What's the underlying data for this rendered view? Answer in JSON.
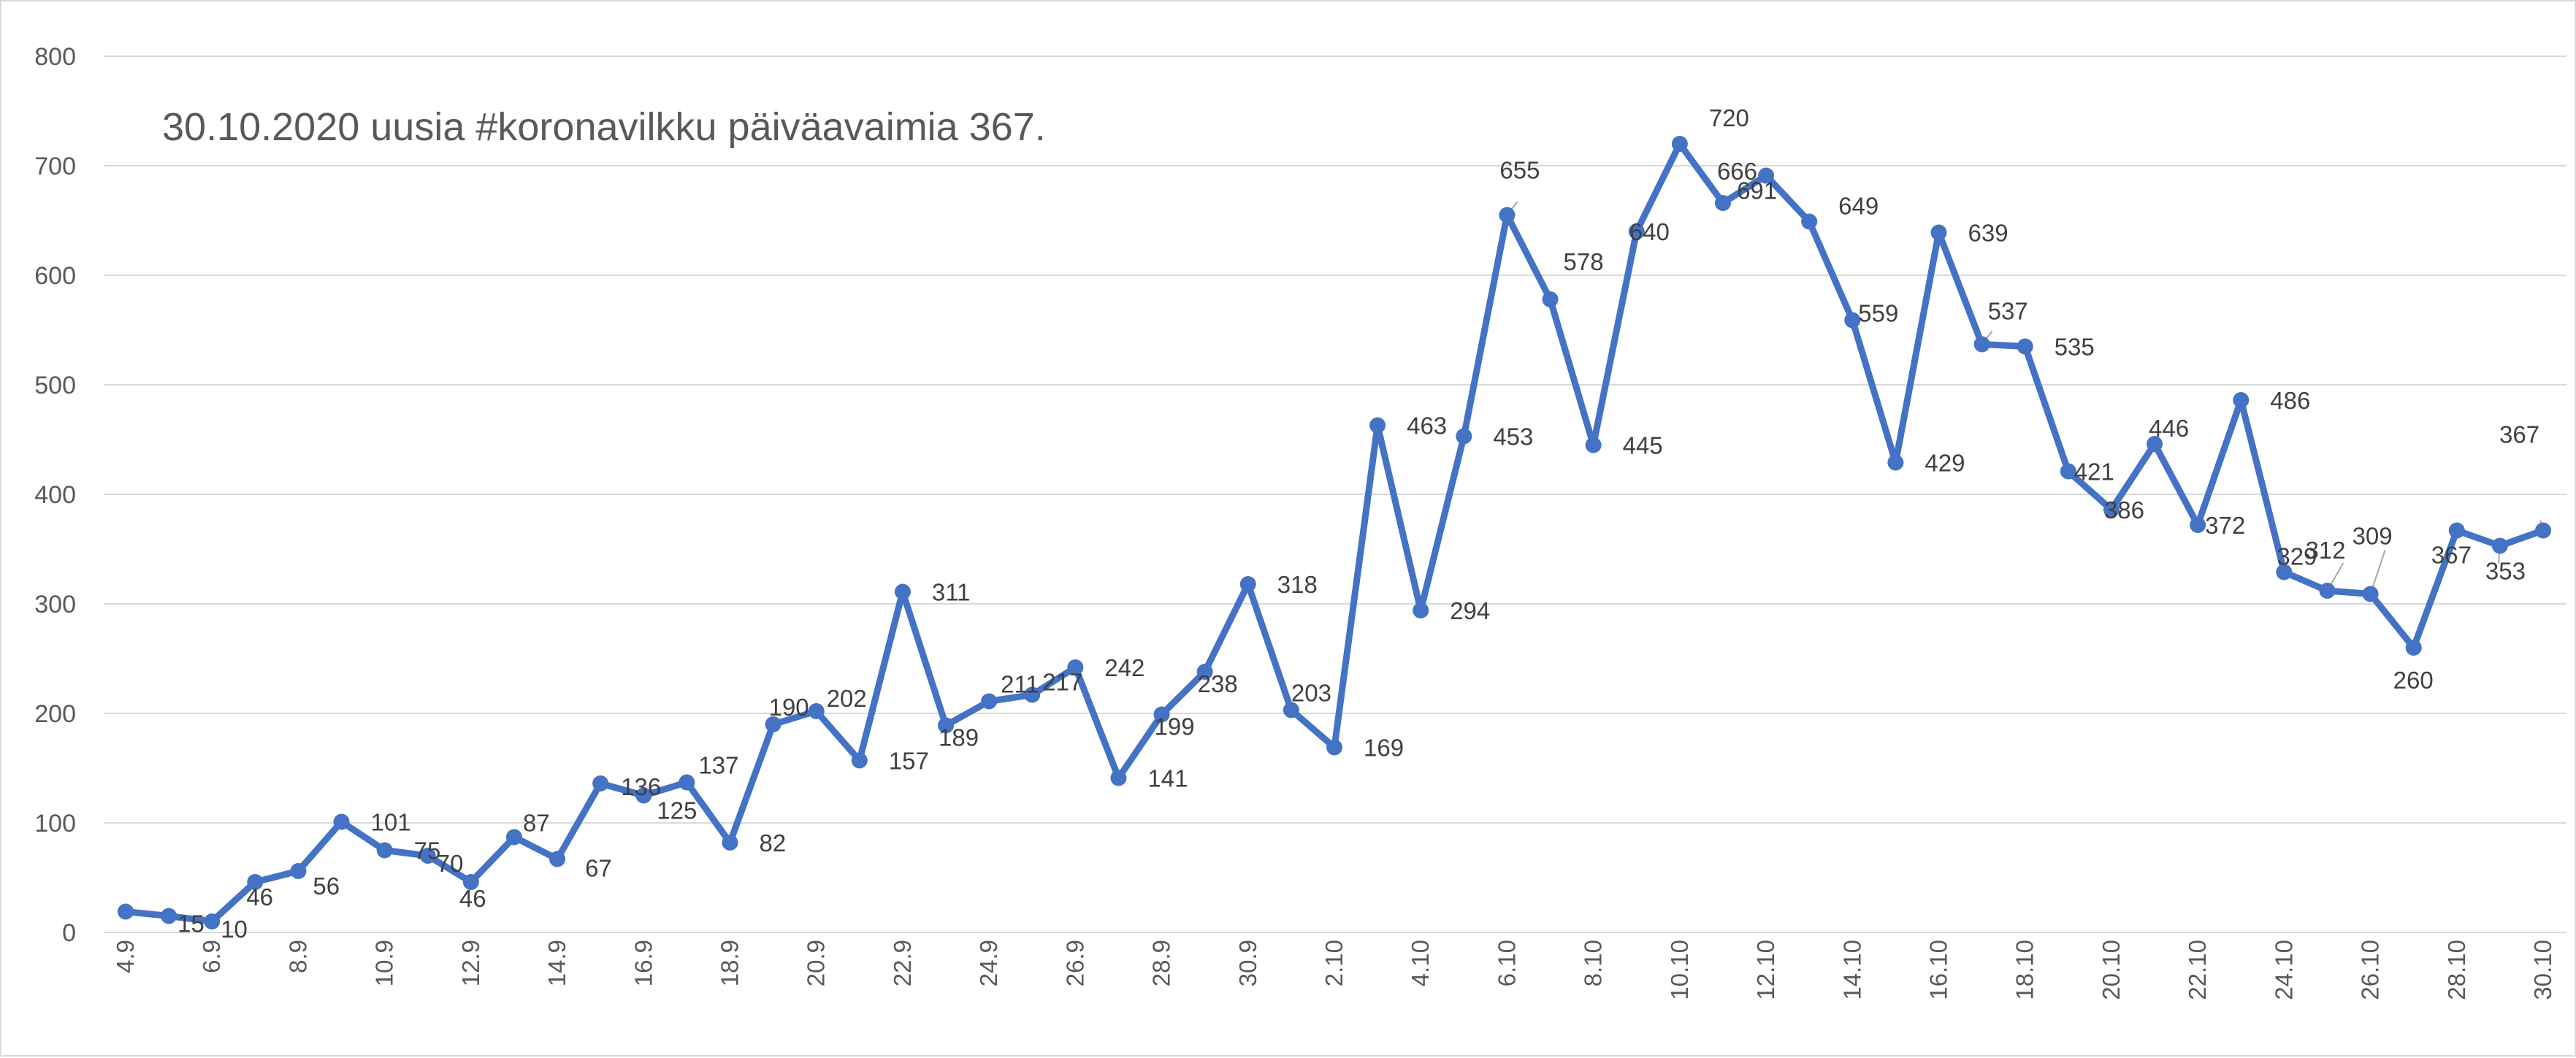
{
  "chart_data": {
    "type": "line",
    "title": "30.10.2020 uusia #koronavilkku päiväavaimia 367.",
    "xlabel": "",
    "ylabel": "",
    "ylim": [
      0,
      800
    ],
    "yticks": [
      0,
      100,
      200,
      300,
      400,
      500,
      600,
      700,
      800
    ],
    "grid": true,
    "legend": "none",
    "color": "#4472c4",
    "x": [
      "4.9",
      "5.9",
      "6.9",
      "7.9",
      "8.9",
      "9.9",
      "10.9",
      "11.9",
      "12.9",
      "13.9",
      "14.9",
      "15.9",
      "16.9",
      "17.9",
      "18.9",
      "19.9",
      "20.9",
      "21.9",
      "22.9",
      "23.9",
      "24.9",
      "25.9",
      "26.9",
      "27.9",
      "28.9",
      "29.9",
      "30.9",
      "1.10",
      "2.10",
      "3.10",
      "4.10",
      "5.10",
      "6.10",
      "7.10",
      "8.10",
      "9.10",
      "10.10",
      "11.10",
      "12.10",
      "13.10",
      "14.10",
      "15.10",
      "16.10",
      "17.10",
      "18.10",
      "19.10",
      "20.10",
      "21.10",
      "22.10",
      "23.10",
      "24.10",
      "25.10",
      "26.10",
      "27.10",
      "28.10",
      "29.10",
      "30.10"
    ],
    "x_tick_labels": [
      "4.9",
      "6.9",
      "8.9",
      "10.9",
      "12.9",
      "14.9",
      "16.9",
      "18.9",
      "20.9",
      "22.9",
      "24.9",
      "26.9",
      "28.9",
      "30.9",
      "2.10",
      "4.10",
      "6.10",
      "8.10",
      "10.10",
      "12.10",
      "14.10",
      "16.10",
      "18.10",
      "20.10",
      "22.10",
      "24.10",
      "26.10",
      "28.10",
      "30.10"
    ],
    "values": [
      19,
      15,
      10,
      46,
      56,
      101,
      75,
      70,
      46,
      87,
      67,
      136,
      125,
      137,
      82,
      190,
      202,
      157,
      311,
      189,
      211,
      217,
      242,
      141,
      199,
      238,
      318,
      203,
      169,
      463,
      294,
      453,
      655,
      578,
      445,
      640,
      720,
      666,
      691,
      649,
      559,
      429,
      639,
      537,
      535,
      421,
      386,
      446,
      372,
      486,
      329,
      312,
      309,
      260,
      367,
      353,
      367
    ],
    "data_labels": [
      "",
      "15",
      "10",
      "46",
      "56",
      "101",
      "75",
      "70",
      "46",
      "87",
      "67",
      "136",
      "125",
      "137",
      "82",
      "190",
      "202",
      "157",
      "311",
      "189",
      "211",
      "217",
      "242",
      "141",
      "199",
      "238",
      "318",
      "203",
      "169",
      "463",
      "294",
      "453",
      "655",
      "578",
      "445",
      "640",
      "720",
      "666",
      "691",
      "649",
      "559",
      "429",
      "639",
      "537",
      "535",
      "421",
      "386",
      "446",
      "372",
      "486",
      "329",
      "312",
      "309",
      "260",
      "367",
      "353",
      "367"
    ]
  }
}
